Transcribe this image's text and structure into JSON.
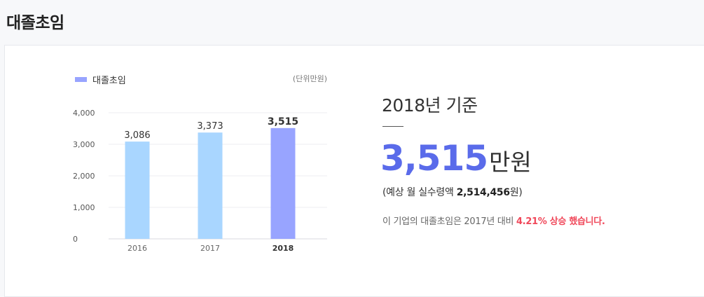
{
  "page": {
    "title": "대졸초임"
  },
  "chart": {
    "legend_label": "대졸초임",
    "unit": "(단위만원)"
  },
  "colors": {
    "bar_previous": "#a9d6ff",
    "bar_current": "#98a4ff",
    "accent_number": "#5a6bea",
    "highlight_red": "#f0485a"
  },
  "chart_data": {
    "type": "bar",
    "categories": [
      "2016",
      "2017",
      "2018"
    ],
    "values": [
      3086,
      3373,
      3515
    ],
    "data_labels": [
      "3,086",
      "3,373",
      "3,515"
    ],
    "y_ticks": [
      "0",
      "1,000",
      "2,000",
      "3,000",
      "4,000"
    ],
    "ylim": [
      0,
      4000
    ],
    "highlight_category": "2018",
    "legend": [
      "대졸초임"
    ],
    "grid": true,
    "legend_position": "top-left"
  },
  "summary": {
    "heading": "2018년 기준",
    "value": "3,515",
    "value_unit": "만원",
    "monthly_prefix": "(예상 월 실수령액 ",
    "monthly_amount": "2,514,456",
    "monthly_suffix": "원)",
    "change_prefix": "이 기업의 대졸초임은 2017년 대비 ",
    "change_highlight": "4.21% 상승 했습니다."
  }
}
